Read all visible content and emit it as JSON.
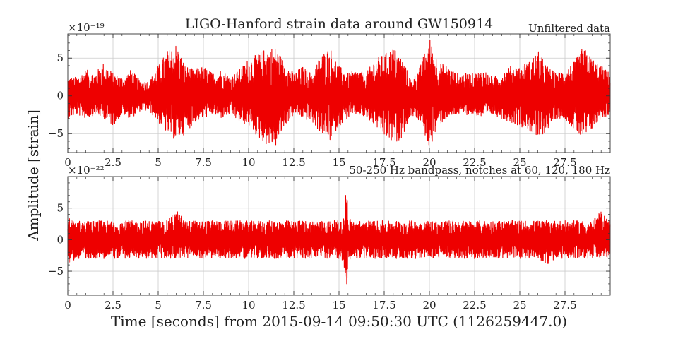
{
  "figure": {
    "title": "LIGO-Hanford strain data around GW150914",
    "ylabel": "Amplitude [strain]",
    "xlabel": "Time [seconds] from 2015-09-14 09:50:30 UTC (1126259447.0)"
  },
  "colors": {
    "series": "#ee0000",
    "grid": "#cccccc",
    "axes": "#333333"
  },
  "chart_data": [
    {
      "type": "line",
      "panel_title": "Unfiltered data",
      "offset_label": "×10⁻¹⁹",
      "xlim": [
        0,
        30
      ],
      "ylim": [
        -7.5,
        8.2
      ],
      "grid": true,
      "x_major_ticks": [
        0,
        2.5,
        5,
        7.5,
        10,
        12.5,
        15,
        17.5,
        20,
        22.5,
        25,
        27.5
      ],
      "x_tick_labels": [
        "0",
        "2.5",
        "5",
        "7.5",
        "10",
        "12.5",
        "15",
        "17.5",
        "20",
        "22.5",
        "25",
        "27.5"
      ],
      "y_ticks": [
        -5,
        0,
        5
      ],
      "y_tick_labels": [
        "−5",
        "0",
        "5"
      ],
      "envelope": {
        "x": [
          0,
          0.5,
          1,
          1.5,
          2,
          2.5,
          3,
          3.5,
          4,
          4.5,
          5,
          5.5,
          6,
          6.5,
          7,
          7.5,
          8,
          8.5,
          9,
          9.5,
          10,
          10.5,
          11,
          11.5,
          12,
          12.5,
          13,
          13.5,
          14,
          14.5,
          15,
          15.5,
          16,
          16.5,
          17,
          17.5,
          18,
          18.5,
          19,
          19.5,
          20,
          20.5,
          21,
          21.5,
          22,
          22.5,
          23,
          23.5,
          24,
          24.5,
          25,
          25.5,
          26,
          26.5,
          27,
          27.5,
          28,
          28.5,
          29,
          29.5,
          30
        ],
        "max": [
          2.5,
          2.5,
          3.5,
          3.0,
          4.5,
          3.0,
          2.5,
          3.5,
          2.0,
          2.0,
          4.0,
          6.0,
          7.0,
          4.0,
          3.5,
          4.0,
          3.0,
          3.5,
          2.5,
          3.5,
          5.0,
          5.5,
          6.5,
          6.5,
          4.5,
          3.0,
          4.0,
          3.0,
          5.5,
          6.5,
          4.0,
          3.0,
          3.5,
          3.0,
          5.0,
          5.5,
          6.5,
          5.0,
          2.0,
          4.0,
          7.8,
          4.5,
          4.0,
          3.0,
          3.0,
          3.0,
          3.5,
          2.5,
          3.0,
          4.0,
          4.0,
          4.5,
          6.0,
          4.0,
          3.0,
          3.5,
          4.5,
          6.5,
          5.0,
          4.0,
          3.0
        ],
        "min": [
          -3.0,
          -2.5,
          -3.0,
          -2.5,
          -3.0,
          -4.0,
          -2.5,
          -3.0,
          -2.0,
          -2.0,
          -3.5,
          -5.0,
          -6.0,
          -5.0,
          -3.5,
          -3.0,
          -2.5,
          -3.0,
          -2.5,
          -3.5,
          -4.0,
          -5.5,
          -6.5,
          -6.8,
          -4.0,
          -2.5,
          -3.0,
          -3.5,
          -5.0,
          -6.0,
          -4.0,
          -3.0,
          -2.5,
          -3.0,
          -4.0,
          -5.5,
          -6.5,
          -5.5,
          -2.5,
          -3.5,
          -7.0,
          -4.0,
          -3.0,
          -2.5,
          -2.5,
          -2.5,
          -3.0,
          -2.5,
          -3.0,
          -3.5,
          -4.0,
          -4.5,
          -6.0,
          -4.5,
          -3.0,
          -3.0,
          -4.5,
          -6.0,
          -4.5,
          -3.0,
          -2.5
        ]
      }
    },
    {
      "type": "line",
      "panel_title": "50-250 Hz bandpass, notches at 60, 120, 180 Hz",
      "offset_label": "×10⁻²²",
      "xlim": [
        0,
        30
      ],
      "ylim": [
        -8.8,
        10
      ],
      "grid": true,
      "x_major_ticks": [
        0,
        2.5,
        5,
        7.5,
        10,
        12.5,
        15,
        17.5,
        20,
        22.5,
        25,
        27.5
      ],
      "x_tick_labels": [
        "0",
        "2.5",
        "5",
        "7.5",
        "10",
        "12.5",
        "15",
        "17.5",
        "20",
        "22.5",
        "25",
        "27.5"
      ],
      "y_ticks": [
        -5,
        0,
        5
      ],
      "y_tick_labels": [
        "−5",
        "0",
        "5"
      ],
      "envelope": {
        "x": [
          0,
          0.5,
          1,
          1.5,
          2,
          2.5,
          3,
          3.5,
          4,
          4.5,
          5,
          5.5,
          6,
          6.5,
          7,
          7.5,
          8,
          8.5,
          9,
          9.5,
          10,
          10.5,
          11,
          11.5,
          12,
          12.5,
          13,
          13.5,
          14,
          14.5,
          15,
          15.25,
          15.4,
          15.55,
          15.75,
          16,
          16.5,
          17,
          17.5,
          18,
          18.5,
          19,
          19.5,
          20,
          20.5,
          21,
          21.5,
          22,
          22.5,
          23,
          23.5,
          24,
          24.5,
          25,
          25.5,
          26,
          26.5,
          27,
          27.5,
          28,
          28.5,
          29,
          29.5,
          30
        ],
        "max": [
          3.5,
          3.0,
          3.0,
          3.0,
          3.0,
          3.0,
          3.0,
          3.0,
          3.0,
          3.0,
          3.0,
          3.0,
          4.8,
          3.0,
          3.0,
          3.0,
          3.0,
          3.0,
          3.0,
          3.0,
          3.0,
          3.0,
          3.0,
          3.0,
          3.0,
          3.0,
          3.0,
          3.0,
          3.0,
          3.0,
          3.0,
          3.5,
          9.2,
          3.5,
          3.0,
          3.0,
          3.0,
          3.0,
          3.0,
          3.0,
          3.0,
          3.0,
          3.0,
          3.0,
          3.0,
          3.0,
          3.0,
          3.0,
          3.0,
          3.0,
          3.0,
          3.0,
          3.0,
          3.0,
          3.0,
          3.0,
          3.0,
          3.0,
          3.0,
          3.0,
          3.0,
          3.0,
          4.5,
          3.0
        ],
        "min": [
          -4.0,
          -3.0,
          -3.0,
          -3.0,
          -3.0,
          -3.0,
          -3.0,
          -3.0,
          -3.0,
          -3.0,
          -3.0,
          -3.0,
          -3.0,
          -3.0,
          -3.0,
          -3.0,
          -3.0,
          -3.0,
          -3.0,
          -3.0,
          -3.0,
          -3.0,
          -3.0,
          -3.0,
          -3.0,
          -3.0,
          -3.0,
          -3.0,
          -3.0,
          -3.0,
          -3.0,
          -3.5,
          -7.8,
          -3.5,
          -3.0,
          -3.0,
          -3.0,
          -3.0,
          -3.0,
          -3.0,
          -3.0,
          -3.0,
          -3.0,
          -3.0,
          -3.0,
          -3.0,
          -3.0,
          -3.0,
          -3.0,
          -3.0,
          -3.0,
          -3.0,
          -3.0,
          -3.0,
          -3.0,
          -3.0,
          -4.0,
          -3.0,
          -3.0,
          -3.0,
          -3.0,
          -3.0,
          -3.0,
          -3.0
        ]
      }
    }
  ]
}
